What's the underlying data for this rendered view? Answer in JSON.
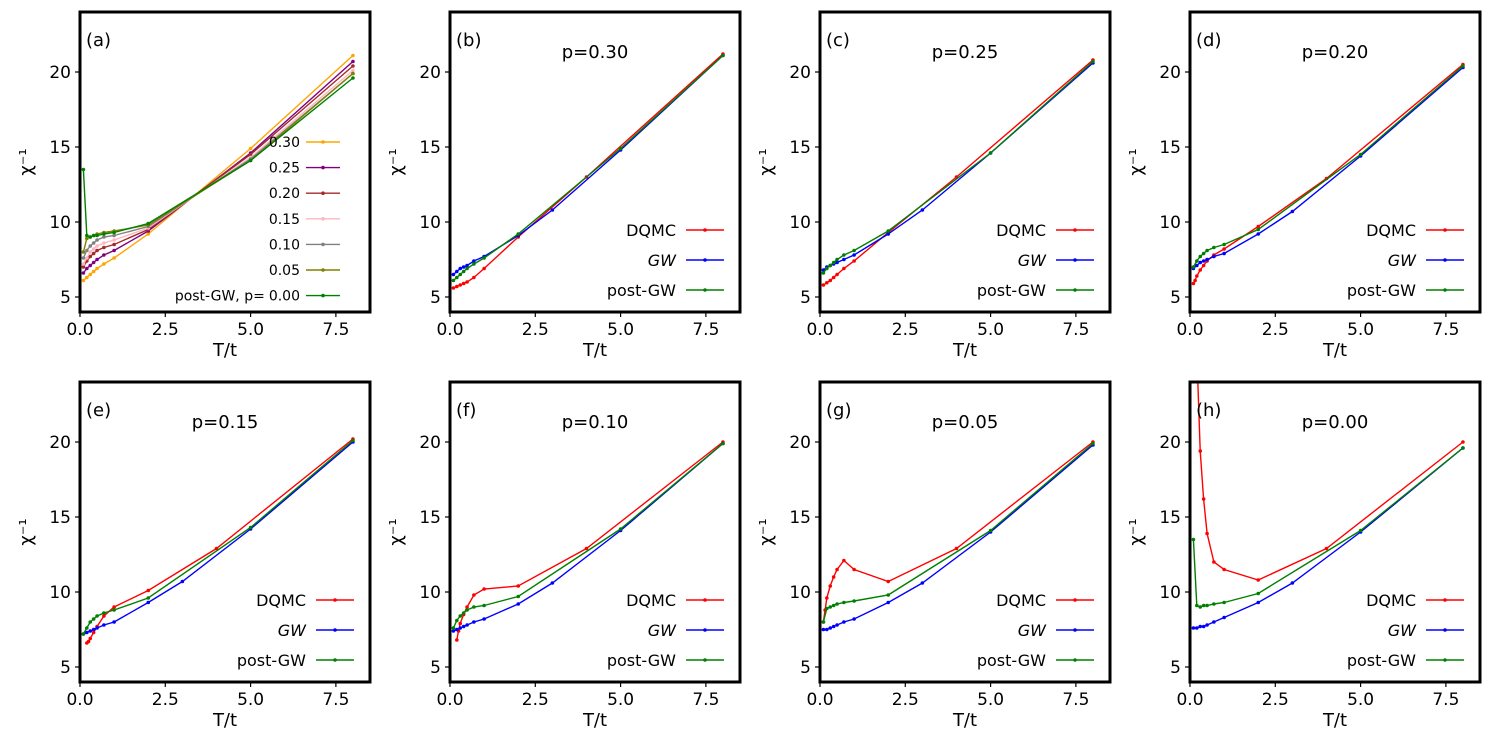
{
  "figure": {
    "xlabel": "T/t",
    "ylabel": "χ⁻¹",
    "xticks": [
      "0.0",
      "2.5",
      "5.0",
      "7.5"
    ],
    "yticks": [
      "5",
      "10",
      "15",
      "20"
    ]
  },
  "colors": {
    "DQMC": "#ff0000",
    "GW": "#0000ff",
    "post-GW": "#008000",
    "p030": "#ffa500",
    "p025": "#800080",
    "p020": "#a52a2a",
    "p015": "#ffb6c1",
    "p010": "#808080",
    "p005": "#808000",
    "p000": "#008000"
  },
  "chart_data": [
    {
      "panel": "(a)",
      "type": "line",
      "title": "",
      "xlabel": "T/t",
      "ylabel": "χ⁻¹",
      "xlim": [
        0,
        8.5
      ],
      "ylim": [
        4,
        24
      ],
      "legend_position": "center-right",
      "legend_title": "post-GW, p=",
      "series": [
        {
          "name": "0.30",
          "color": "#ffa500",
          "x": [
            0.1,
            0.2,
            0.3,
            0.4,
            0.5,
            0.7,
            1,
            2,
            5,
            8
          ],
          "y": [
            6.1,
            6.3,
            6.5,
            6.7,
            6.9,
            7.2,
            7.6,
            9.2,
            14.9,
            21.1
          ]
        },
        {
          "name": "0.25",
          "color": "#800080",
          "x": [
            0.1,
            0.2,
            0.3,
            0.4,
            0.5,
            0.7,
            1,
            2,
            5,
            8
          ],
          "y": [
            6.6,
            6.9,
            7.1,
            7.3,
            7.5,
            7.8,
            8.1,
            9.4,
            14.6,
            20.7
          ]
        },
        {
          "name": "0.20",
          "color": "#a52a2a",
          "x": [
            0.1,
            0.2,
            0.3,
            0.4,
            0.5,
            0.7,
            1,
            2,
            5,
            8
          ],
          "y": [
            7.0,
            7.4,
            7.7,
            7.9,
            8.1,
            8.3,
            8.5,
            9.5,
            14.5,
            20.4
          ]
        },
        {
          "name": "0.15",
          "color": "#ffb6c1",
          "x": [
            0.1,
            0.2,
            0.3,
            0.4,
            0.5,
            0.7,
            1,
            2,
            5,
            8
          ],
          "y": [
            7.2,
            7.6,
            8.0,
            8.2,
            8.4,
            8.6,
            8.8,
            9.6,
            14.3,
            20.1
          ]
        },
        {
          "name": "0.10",
          "color": "#808080",
          "x": [
            0.1,
            0.2,
            0.3,
            0.4,
            0.5,
            0.7,
            1,
            2,
            5,
            8
          ],
          "y": [
            7.6,
            8.1,
            8.4,
            8.6,
            8.8,
            9.0,
            9.1,
            9.7,
            14.2,
            19.9
          ]
        },
        {
          "name": "0.05",
          "color": "#808000",
          "x": [
            0.1,
            0.2,
            0.3,
            0.4,
            0.5,
            0.7,
            1,
            2,
            5,
            8
          ],
          "y": [
            8.0,
            8.9,
            9.0,
            9.1,
            9.2,
            9.3,
            9.4,
            9.8,
            14.1,
            19.9
          ]
        },
        {
          "name": "0.00",
          "color": "#008000",
          "x": [
            0.1,
            0.2,
            0.3,
            0.4,
            0.5,
            0.7,
            1,
            2,
            5,
            8
          ],
          "y": [
            13.5,
            9.1,
            9.0,
            9.1,
            9.1,
            9.2,
            9.3,
            9.9,
            14.1,
            19.6
          ]
        }
      ]
    },
    {
      "panel": "(b)",
      "type": "line",
      "title": "p=0.30",
      "xlabel": "T/t",
      "ylabel": "χ⁻¹",
      "xlim": [
        0,
        8.5
      ],
      "ylim": [
        4,
        24
      ],
      "legend_position": "lower-right",
      "series": [
        {
          "name": "DQMC",
          "color": "#ff0000",
          "x": [
            0.1,
            0.2,
            0.3,
            0.4,
            0.5,
            0.7,
            1,
            2,
            4,
            8
          ],
          "y": [
            5.6,
            5.7,
            5.8,
            5.9,
            6.0,
            6.3,
            6.9,
            9.0,
            13.0,
            21.2
          ]
        },
        {
          "name": "GW",
          "color": "#0000ff",
          "x": [
            0.1,
            0.2,
            0.3,
            0.4,
            0.5,
            0.7,
            1,
            2,
            3,
            5,
            8
          ],
          "y": [
            6.5,
            6.7,
            6.9,
            7.0,
            7.1,
            7.4,
            7.7,
            9.1,
            10.8,
            14.8,
            21.1
          ]
        },
        {
          "name": "post-GW",
          "color": "#008000",
          "x": [
            0.1,
            0.2,
            0.3,
            0.4,
            0.5,
            0.7,
            1,
            2,
            5,
            8
          ],
          "y": [
            6.1,
            6.3,
            6.5,
            6.7,
            6.9,
            7.2,
            7.6,
            9.2,
            14.9,
            21.1
          ]
        }
      ]
    },
    {
      "panel": "(c)",
      "type": "line",
      "title": "p=0.25",
      "xlabel": "T/t",
      "ylabel": "χ⁻¹",
      "xlim": [
        0,
        8.5
      ],
      "ylim": [
        4,
        24
      ],
      "legend_position": "lower-right",
      "series": [
        {
          "name": "DQMC",
          "color": "#ff0000",
          "x": [
            0.1,
            0.2,
            0.3,
            0.4,
            0.5,
            0.7,
            1,
            2,
            4,
            8
          ],
          "y": [
            5.8,
            5.95,
            6.1,
            6.3,
            6.5,
            6.9,
            7.4,
            9.3,
            13.0,
            20.8
          ]
        },
        {
          "name": "GW",
          "color": "#0000ff",
          "x": [
            0.1,
            0.2,
            0.3,
            0.4,
            0.5,
            0.7,
            1,
            2,
            3,
            5,
            8
          ],
          "y": [
            6.8,
            7.0,
            7.1,
            7.2,
            7.3,
            7.5,
            7.8,
            9.2,
            10.8,
            14.6,
            20.6
          ]
        },
        {
          "name": "post-GW",
          "color": "#008000",
          "x": [
            0.1,
            0.2,
            0.3,
            0.4,
            0.5,
            0.7,
            1,
            2,
            5,
            8
          ],
          "y": [
            6.6,
            6.9,
            7.1,
            7.3,
            7.5,
            7.8,
            8.1,
            9.4,
            14.6,
            20.7
          ]
        }
      ]
    },
    {
      "panel": "(d)",
      "type": "line",
      "title": "p=0.20",
      "xlabel": "T/t",
      "ylabel": "χ⁻¹",
      "xlim": [
        0,
        8.5
      ],
      "ylim": [
        4,
        24
      ],
      "legend_position": "lower-right",
      "series": [
        {
          "name": "DQMC",
          "color": "#ff0000",
          "x": [
            0.1,
            0.15,
            0.2,
            0.3,
            0.4,
            0.5,
            0.7,
            1,
            2,
            4,
            8
          ],
          "y": [
            5.9,
            6.1,
            6.4,
            6.8,
            7.1,
            7.4,
            7.8,
            8.2,
            9.7,
            12.9,
            20.5
          ]
        },
        {
          "name": "GW",
          "color": "#0000ff",
          "x": [
            0.1,
            0.2,
            0.3,
            0.4,
            0.5,
            0.7,
            1,
            2,
            3,
            5,
            8
          ],
          "y": [
            6.9,
            7.1,
            7.3,
            7.4,
            7.5,
            7.7,
            7.9,
            9.2,
            10.7,
            14.4,
            20.3
          ]
        },
        {
          "name": "post-GW",
          "color": "#008000",
          "x": [
            0.1,
            0.2,
            0.3,
            0.4,
            0.5,
            0.7,
            1,
            2,
            5,
            8
          ],
          "y": [
            7.0,
            7.4,
            7.7,
            7.9,
            8.1,
            8.3,
            8.5,
            9.5,
            14.5,
            20.4
          ]
        }
      ]
    },
    {
      "panel": "(e)",
      "type": "line",
      "title": "p=0.15",
      "xlabel": "T/t",
      "ylabel": "χ⁻¹",
      "xlim": [
        0,
        8.5
      ],
      "ylim": [
        4,
        24
      ],
      "legend_position": "lower-right",
      "series": [
        {
          "name": "DQMC",
          "color": "#ff0000",
          "x": [
            0.2,
            0.25,
            0.3,
            0.4,
            0.5,
            0.7,
            1,
            2,
            4,
            8
          ],
          "y": [
            6.6,
            6.7,
            6.9,
            7.3,
            7.7,
            8.4,
            9.0,
            10.1,
            12.9,
            20.2
          ]
        },
        {
          "name": "GW",
          "color": "#0000ff",
          "x": [
            0.1,
            0.2,
            0.3,
            0.4,
            0.5,
            0.7,
            1,
            2,
            3,
            5,
            8
          ],
          "y": [
            7.2,
            7.3,
            7.4,
            7.5,
            7.6,
            7.8,
            8.0,
            9.3,
            10.7,
            14.2,
            20.0
          ]
        },
        {
          "name": "post-GW",
          "color": "#008000",
          "x": [
            0.1,
            0.2,
            0.3,
            0.4,
            0.5,
            0.7,
            1,
            2,
            5,
            8
          ],
          "y": [
            7.2,
            7.6,
            8.0,
            8.2,
            8.4,
            8.6,
            8.8,
            9.6,
            14.3,
            20.1
          ]
        }
      ]
    },
    {
      "panel": "(f)",
      "type": "line",
      "title": "p=0.10",
      "xlabel": "T/t",
      "ylabel": "χ⁻¹",
      "xlim": [
        0,
        8.5
      ],
      "ylim": [
        4,
        24
      ],
      "legend_position": "lower-right",
      "series": [
        {
          "name": "DQMC",
          "color": "#ff0000",
          "x": [
            0.2,
            0.25,
            0.3,
            0.4,
            0.5,
            0.7,
            1,
            2,
            4,
            8
          ],
          "y": [
            6.8,
            7.4,
            7.9,
            8.5,
            9.0,
            9.8,
            10.2,
            10.4,
            12.9,
            20.0
          ]
        },
        {
          "name": "GW",
          "color": "#0000ff",
          "x": [
            0.1,
            0.2,
            0.3,
            0.4,
            0.5,
            0.7,
            1,
            2,
            3,
            5,
            8
          ],
          "y": [
            7.4,
            7.5,
            7.6,
            7.7,
            7.8,
            8.0,
            8.2,
            9.2,
            10.6,
            14.1,
            19.9
          ]
        },
        {
          "name": "post-GW",
          "color": "#008000",
          "x": [
            0.1,
            0.2,
            0.3,
            0.4,
            0.5,
            0.7,
            1,
            2,
            5,
            8
          ],
          "y": [
            7.6,
            8.1,
            8.4,
            8.6,
            8.8,
            9.0,
            9.1,
            9.7,
            14.2,
            19.9
          ]
        }
      ]
    },
    {
      "panel": "(g)",
      "type": "line",
      "title": "p=0.05",
      "xlabel": "T/t",
      "ylabel": "χ⁻¹",
      "xlim": [
        0,
        8.5
      ],
      "ylim": [
        4,
        24
      ],
      "legend_position": "lower-right",
      "series": [
        {
          "name": "DQMC",
          "color": "#ff0000",
          "x": [
            0.1,
            0.15,
            0.2,
            0.3,
            0.4,
            0.5,
            0.7,
            1,
            2,
            4,
            8
          ],
          "y": [
            8.0,
            8.8,
            9.6,
            10.4,
            11.0,
            11.5,
            12.1,
            11.5,
            10.7,
            12.9,
            20.0
          ]
        },
        {
          "name": "GW",
          "color": "#0000ff",
          "x": [
            0.1,
            0.2,
            0.3,
            0.4,
            0.5,
            0.7,
            1,
            2,
            3,
            5,
            8
          ],
          "y": [
            7.5,
            7.5,
            7.6,
            7.7,
            7.8,
            8.0,
            8.2,
            9.3,
            10.6,
            14.0,
            19.8
          ]
        },
        {
          "name": "post-GW",
          "color": "#008000",
          "x": [
            0.1,
            0.2,
            0.3,
            0.4,
            0.5,
            0.7,
            1,
            2,
            5,
            8
          ],
          "y": [
            8.0,
            8.9,
            9.0,
            9.1,
            9.2,
            9.3,
            9.4,
            9.8,
            14.1,
            19.9
          ]
        }
      ]
    },
    {
      "panel": "(h)",
      "type": "line",
      "title": "p=0.00",
      "xlabel": "T/t",
      "ylabel": "χ⁻¹",
      "xlim": [
        0,
        8.5
      ],
      "ylim": [
        4,
        24
      ],
      "legend_position": "lower-right",
      "series": [
        {
          "name": "DQMC",
          "color": "#ff0000",
          "x": [
            0.2,
            0.3,
            0.4,
            0.5,
            0.7,
            1,
            2,
            4,
            8
          ],
          "y": [
            26.0,
            19.4,
            16.2,
            13.9,
            12.0,
            11.5,
            10.8,
            12.9,
            20.0
          ]
        },
        {
          "name": "GW",
          "color": "#0000ff",
          "x": [
            0.1,
            0.2,
            0.3,
            0.4,
            0.5,
            0.7,
            1,
            2,
            3,
            5,
            8
          ],
          "y": [
            7.6,
            7.6,
            7.7,
            7.7,
            7.8,
            8.0,
            8.3,
            9.3,
            10.6,
            14.0,
            19.6
          ]
        },
        {
          "name": "post-GW",
          "color": "#008000",
          "x": [
            0.1,
            0.2,
            0.3,
            0.4,
            0.5,
            0.7,
            1,
            2,
            5,
            8
          ],
          "y": [
            13.5,
            9.1,
            9.0,
            9.1,
            9.1,
            9.2,
            9.3,
            9.9,
            14.1,
            19.6
          ]
        }
      ]
    }
  ]
}
